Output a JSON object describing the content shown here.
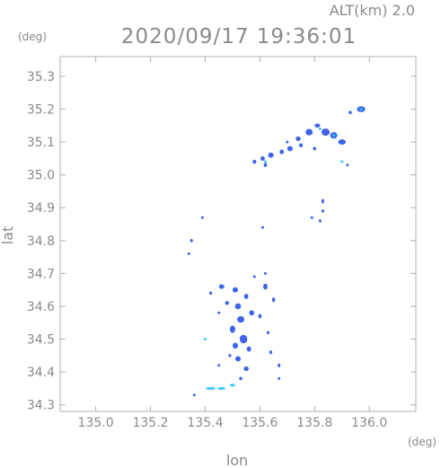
{
  "header": {
    "altitude_label": "ALT(km)  2.0",
    "timestamp": "2020/09/17 19:36:01"
  },
  "colors": {
    "axis": "#b0b0b0",
    "text": "#8a8a8a",
    "echo_core": "#2f57e8",
    "echo_light": "#4a7cf2",
    "echo_cyan": "#2ec7ef",
    "echo_teal": "#22a7d8"
  },
  "chart_data": {
    "type": "scatter",
    "title": "2020/09/17 19:36:01",
    "subtitle": "ALT(km)  2.0",
    "xlabel": "lon",
    "ylabel": "lat",
    "x_unit": "(deg)",
    "y_unit": "(deg)",
    "xlim": [
      134.87,
      136.17
    ],
    "ylim": [
      34.28,
      35.36
    ],
    "xticks": [
      135.0,
      135.2,
      135.4,
      135.6,
      135.8,
      136.0
    ],
    "xtick_labels": [
      "135.0",
      "135.2",
      "135.4",
      "135.6",
      "135.8",
      "136.0"
    ],
    "yticks": [
      34.3,
      34.4,
      34.5,
      34.6,
      34.7,
      34.8,
      34.9,
      35.0,
      35.1,
      35.2,
      35.3
    ],
    "ytick_labels": [
      "34.3",
      "34.4",
      "34.5",
      "34.6",
      "34.7",
      "34.8",
      "34.9",
      "35.0",
      "35.1",
      "35.2",
      "35.3"
    ],
    "grid": false,
    "series": [
      {
        "color": "#2f57e8",
        "points": [
          [
            135.97,
            35.2,
            0.03,
            0.018
          ],
          [
            135.93,
            35.19,
            0.012,
            0.01
          ],
          [
            135.78,
            35.13,
            0.026,
            0.02
          ],
          [
            135.84,
            35.13,
            0.03,
            0.022
          ],
          [
            135.87,
            35.12,
            0.026,
            0.02
          ],
          [
            135.9,
            35.1,
            0.028,
            0.016
          ],
          [
            135.81,
            35.15,
            0.02,
            0.012
          ],
          [
            135.74,
            35.11,
            0.018,
            0.014
          ],
          [
            135.71,
            35.08,
            0.02,
            0.016
          ],
          [
            135.75,
            35.09,
            0.014,
            0.012
          ],
          [
            135.68,
            35.07,
            0.016,
            0.014
          ],
          [
            135.64,
            35.06,
            0.02,
            0.016
          ],
          [
            135.61,
            35.05,
            0.016,
            0.014
          ],
          [
            135.58,
            35.04,
            0.014,
            0.012
          ],
          [
            135.62,
            35.03,
            0.012,
            0.012
          ],
          [
            135.8,
            35.08,
            0.012,
            0.01
          ],
          [
            135.7,
            35.1,
            0.01,
            0.008
          ],
          [
            135.92,
            35.03,
            0.006,
            0.008
          ],
          [
            135.83,
            34.92,
            0.01,
            0.014
          ],
          [
            135.83,
            34.89,
            0.008,
            0.01
          ],
          [
            135.82,
            34.86,
            0.006,
            0.01
          ],
          [
            135.79,
            34.87,
            0.01,
            0.008
          ],
          [
            135.61,
            34.84,
            0.006,
            0.008
          ],
          [
            135.39,
            34.87,
            0.006,
            0.008
          ],
          [
            135.35,
            34.8,
            0.008,
            0.01
          ],
          [
            135.34,
            34.76,
            0.004,
            0.006
          ],
          [
            135.46,
            34.66,
            0.02,
            0.014
          ],
          [
            135.51,
            34.65,
            0.02,
            0.016
          ],
          [
            135.55,
            34.63,
            0.016,
            0.016
          ],
          [
            135.48,
            34.61,
            0.014,
            0.012
          ],
          [
            135.52,
            34.6,
            0.022,
            0.018
          ],
          [
            135.57,
            34.58,
            0.018,
            0.016
          ],
          [
            135.53,
            34.56,
            0.026,
            0.02
          ],
          [
            135.5,
            34.53,
            0.02,
            0.022
          ],
          [
            135.54,
            34.5,
            0.028,
            0.026
          ],
          [
            135.51,
            34.48,
            0.02,
            0.018
          ],
          [
            135.56,
            34.47,
            0.016,
            0.016
          ],
          [
            135.52,
            34.44,
            0.02,
            0.016
          ],
          [
            135.55,
            34.41,
            0.018,
            0.014
          ],
          [
            135.49,
            34.45,
            0.01,
            0.01
          ],
          [
            135.62,
            34.66,
            0.016,
            0.018
          ],
          [
            135.65,
            34.62,
            0.012,
            0.014
          ],
          [
            135.6,
            34.57,
            0.012,
            0.014
          ],
          [
            135.63,
            34.52,
            0.01,
            0.01
          ],
          [
            135.64,
            34.46,
            0.01,
            0.012
          ],
          [
            135.67,
            34.42,
            0.008,
            0.012
          ],
          [
            135.67,
            34.38,
            0.006,
            0.006
          ],
          [
            135.58,
            34.69,
            0.01,
            0.008
          ],
          [
            135.42,
            34.64,
            0.008,
            0.01
          ],
          [
            135.45,
            34.58,
            0.006,
            0.008
          ],
          [
            135.53,
            34.38,
            0.012,
            0.01
          ],
          [
            135.45,
            34.42,
            0.006,
            0.006
          ],
          [
            135.36,
            34.33,
            0.008,
            0.006
          ],
          [
            135.62,
            34.7,
            0.006,
            0.006
          ]
        ]
      },
      {
        "color": "#2ec7ef",
        "points": [
          [
            135.42,
            34.35,
            0.036,
            0.007
          ],
          [
            135.46,
            34.35,
            0.03,
            0.007
          ],
          [
            135.5,
            34.36,
            0.02,
            0.006
          ],
          [
            135.4,
            34.5,
            0.006,
            0.006
          ],
          [
            135.9,
            35.04,
            0.006,
            0.006
          ],
          [
            135.82,
            35.14,
            0.01,
            0.008
          ],
          [
            135.87,
            35.12,
            0.01,
            0.008
          ],
          [
            135.97,
            35.2,
            0.012,
            0.008
          ],
          [
            135.62,
            35.04,
            0.006,
            0.006
          ]
        ]
      }
    ]
  }
}
